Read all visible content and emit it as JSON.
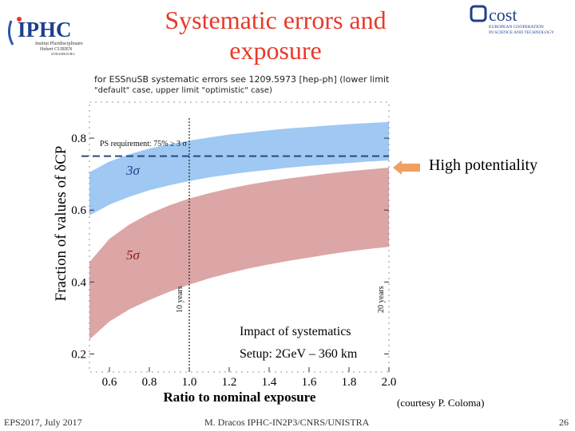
{
  "slide": {
    "title": "Systematic errors and exposure",
    "note_line1": "for ESSnuSB systematic errors see 1209.5973 [hep-ph] (lower limit",
    "note_line2": "\"default\" case, upper limit \"optimistic\" case)",
    "side_label": "High potentiality",
    "courtesy": "(courtesy P. Coloma)",
    "footer_left": "EPS2017, July 2017",
    "footer_center": "M. Dracos IPHC-IN2P3/CNRS/UNISTRA",
    "page_number": "26",
    "colors": {
      "title": "#e8392a",
      "arrow": "#f0a060"
    }
  },
  "logos": {
    "iphc": {
      "name": "IPHC",
      "line1": "Institut Pluridisciplinaire",
      "line2": "Hubert CURIEN",
      "line3": "STRASBOURG"
    },
    "cost": {
      "name": "cost",
      "line1": "EUROPEAN COOPERATION",
      "line2": "IN SCIENCE AND TECHNOLOGY"
    }
  },
  "chart_data": {
    "type": "area",
    "xlabel": "Ratio to nominal exposure",
    "ylabel": "Fraction of values of δCP",
    "xlim": [
      0.5,
      2.0
    ],
    "ylim": [
      0.15,
      0.9
    ],
    "x_ticks": [
      "0.6",
      "0.8",
      "1.0",
      "1.2",
      "1.4",
      "1.6",
      "1.8",
      "2.0"
    ],
    "y_ticks": [
      "0.2",
      "0.4",
      "0.6",
      "0.8"
    ],
    "x": [
      0.5,
      0.6,
      0.7,
      0.8,
      0.9,
      1.0,
      1.1,
      1.2,
      1.3,
      1.4,
      1.5,
      1.6,
      1.7,
      1.8,
      1.9,
      2.0
    ],
    "series": [
      {
        "name": "3σ",
        "color": "#9fc8f2",
        "upper": [
          0.705,
          0.735,
          0.755,
          0.771,
          0.783,
          0.793,
          0.802,
          0.81,
          0.816,
          0.822,
          0.827,
          0.831,
          0.835,
          0.839,
          0.842,
          0.845
        ],
        "lower": [
          0.585,
          0.615,
          0.637,
          0.655,
          0.669,
          0.681,
          0.691,
          0.699,
          0.706,
          0.712,
          0.718,
          0.723,
          0.727,
          0.731,
          0.735,
          0.738
        ]
      },
      {
        "name": "5σ",
        "color": "#dca6a6",
        "upper": [
          0.455,
          0.52,
          0.56,
          0.59,
          0.613,
          0.632,
          0.647,
          0.66,
          0.671,
          0.68,
          0.688,
          0.695,
          0.702,
          0.708,
          0.713,
          0.718
        ],
        "lower": [
          0.24,
          0.29,
          0.324,
          0.35,
          0.373,
          0.393,
          0.41,
          0.425,
          0.438,
          0.449,
          0.459,
          0.468,
          0.477,
          0.485,
          0.492,
          0.498
        ]
      }
    ],
    "requirement": {
      "label": "PS requirement: 75% ≥ 3 σ",
      "y": 0.75
    },
    "vlines": [
      {
        "x": 1.0,
        "label": "10 years"
      },
      {
        "x": 2.0,
        "label": "20 years"
      }
    ],
    "annotations": {
      "line1": "Impact of systematics",
      "line2": "Setup: 2GeV – 360 km"
    }
  }
}
